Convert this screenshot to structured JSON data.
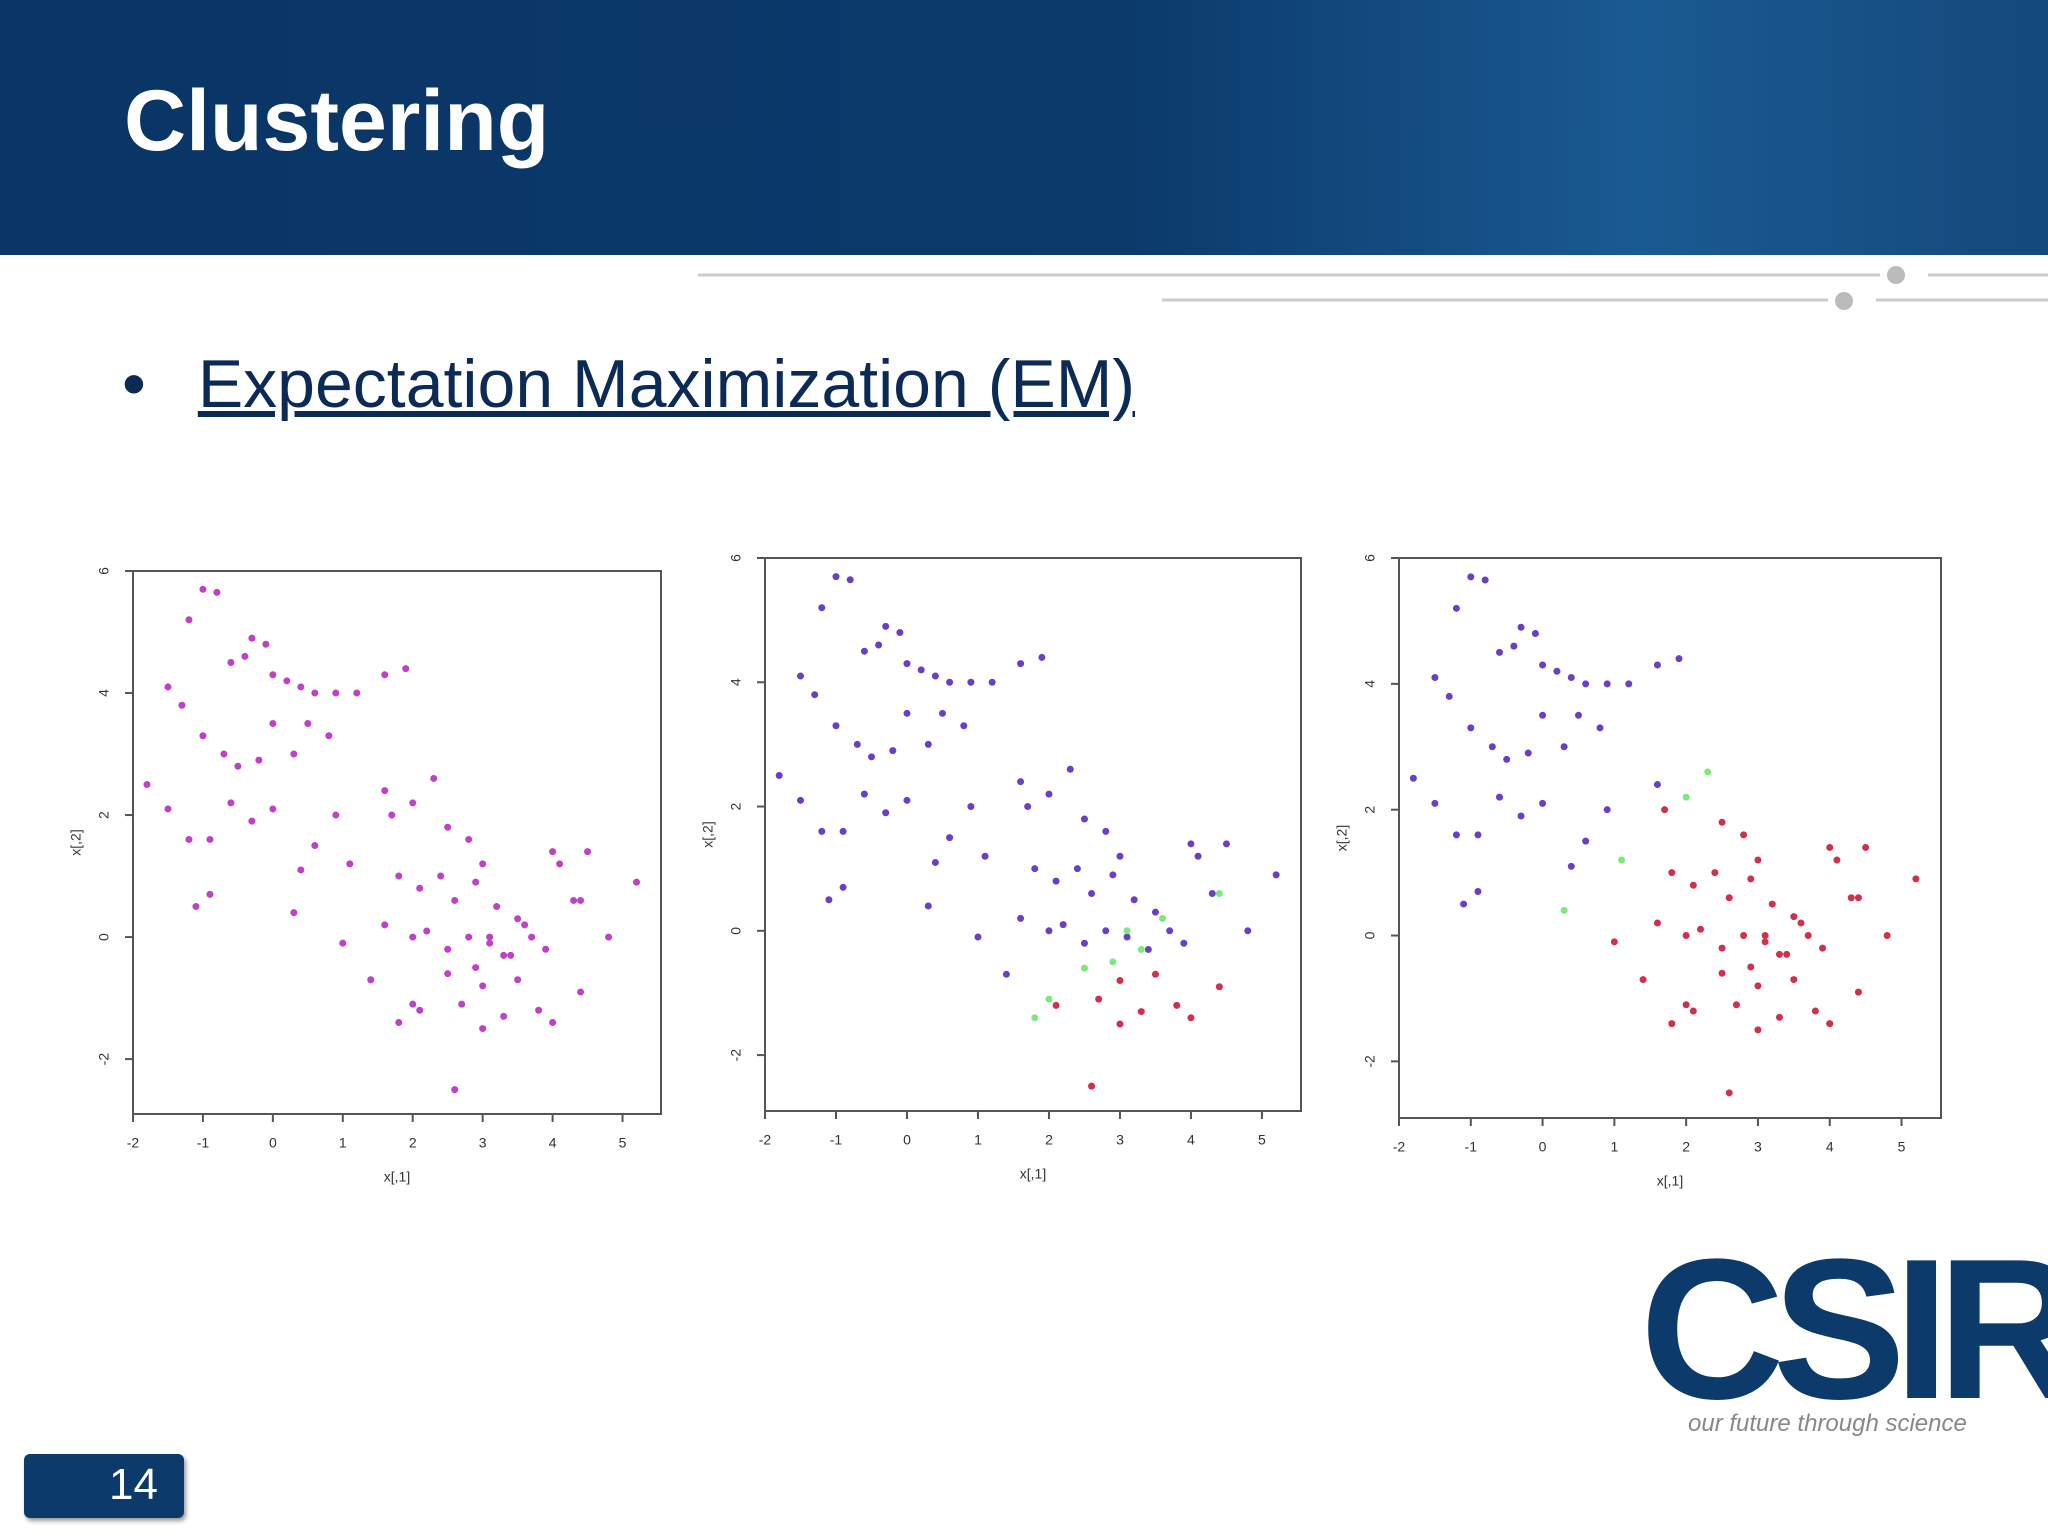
{
  "header": {
    "title": "Clustering"
  },
  "bullet": "Expectation Maximization (EM)",
  "logo": {
    "name": "CSIR",
    "tagline": "our future through science"
  },
  "page_number": "14",
  "chart_data": [
    {
      "type": "scatter",
      "xlabel": "x[,1]",
      "ylabel": "x[,2]",
      "xlim": [
        -2,
        5.55
      ],
      "ylim": [
        -2.9,
        6
      ],
      "xticks": [
        -2,
        -1,
        0,
        1,
        2,
        3,
        4,
        5
      ],
      "yticks": [
        -2,
        0,
        2,
        4,
        6
      ],
      "series": [
        {
          "color": "#c040c8",
          "x": [
            -1.5,
            -1.2,
            -1,
            -0.8,
            -0.6,
            -0.4,
            -0.3,
            -0.1,
            0,
            0.2,
            0.4,
            0.6,
            0.9,
            1.2,
            1.6,
            -1.3,
            -1,
            -0.7,
            -0.5,
            -0.2,
            0,
            0.3,
            0.5,
            0.8,
            -1.8,
            -1.5,
            -1.2,
            -0.9,
            -0.6,
            -0.3,
            0,
            0.4,
            0.6,
            -1.1,
            -0.9,
            0.3,
            1.1,
            1.6,
            1.9,
            0.9
          ],
          "values": [
            4.1,
            5.2,
            5.7,
            5.65,
            4.5,
            4.6,
            4.9,
            4.8,
            4.3,
            4.2,
            4.1,
            4,
            4,
            4,
            4.3,
            3.8,
            3.3,
            3,
            2.8,
            2.9,
            3.5,
            3,
            3.5,
            3.3,
            2.5,
            2.1,
            1.6,
            1.6,
            2.2,
            1.9,
            2.1,
            1.1,
            1.5,
            0.5,
            0.7,
            0.4,
            1.2,
            2.4,
            4.4,
            2
          ]
        },
        {
          "color": "#c040c8",
          "x": [
            1.7,
            2.0,
            2.3,
            2.5,
            2.8,
            3.0,
            1.8,
            2.1,
            2.4,
            2.6,
            2.9,
            3.2,
            3.5,
            1.6,
            2.0,
            2.2,
            2.5,
            2.8,
            3.1,
            3.4,
            3.7,
            4.0,
            4.1,
            4.3,
            4.5,
            5.2,
            4.8,
            1.0,
            3.9,
            1.4
          ],
          "values": [
            2.0,
            2.2,
            2.6,
            1.8,
            1.6,
            1.2,
            1.0,
            0.8,
            1.0,
            0.6,
            0.9,
            0.5,
            0.3,
            0.2,
            0,
            0.1,
            -0.2,
            0,
            -0.1,
            -0.3,
            0,
            1.4,
            1.2,
            0.6,
            1.4,
            0.9,
            0,
            -0.1,
            -0.2,
            -0.7
          ]
        },
        {
          "color": "#c040c8",
          "x": [
            2.7,
            3.0,
            3.5,
            3.8,
            4.0,
            4.4,
            2.6,
            3.0,
            3.3,
            2.1
          ],
          "values": [
            -1.1,
            -0.8,
            -0.7,
            -1.2,
            -1.4,
            -0.9,
            -2.5,
            -1.5,
            -1.3,
            -1.2
          ]
        },
        {
          "color": "#c040c8",
          "x": [
            1.8,
            2.0,
            2.5,
            2.9,
            3.3,
            3.6,
            4.4,
            3.1
          ],
          "values": [
            -1.4,
            -1.1,
            -0.6,
            -0.5,
            -0.3,
            0.2,
            0.6,
            0
          ]
        }
      ]
    },
    {
      "type": "scatter",
      "xlabel": "x[,1]",
      "ylabel": "x[,2]",
      "xlim": [
        -2,
        5.55
      ],
      "ylim": [
        -2.9,
        6
      ],
      "xticks": [
        -2,
        -1,
        0,
        1,
        2,
        3,
        4,
        5
      ],
      "yticks": [
        -2,
        0,
        2,
        4,
        6
      ],
      "series": [
        {
          "color": "#6a3fc8",
          "x": [
            -1.5,
            -1.2,
            -1,
            -0.8,
            -0.6,
            -0.4,
            -0.3,
            -0.1,
            0,
            0.2,
            0.4,
            0.6,
            0.9,
            1.2,
            1.6,
            -1.3,
            -1,
            -0.7,
            -0.5,
            -0.2,
            0,
            0.3,
            0.5,
            0.8,
            -1.8,
            -1.5,
            -1.2,
            -0.9,
            -0.6,
            -0.3,
            0,
            0.4,
            0.6,
            -1.1,
            -0.9,
            0.3,
            1.1,
            1.6,
            1.9,
            0.9
          ],
          "values": [
            4.1,
            5.2,
            5.7,
            5.65,
            4.5,
            4.6,
            4.9,
            4.8,
            4.3,
            4.2,
            4.1,
            4,
            4,
            4,
            4.3,
            3.8,
            3.3,
            3,
            2.8,
            2.9,
            3.5,
            3,
            3.5,
            3.3,
            2.5,
            2.1,
            1.6,
            1.6,
            2.2,
            1.9,
            2.1,
            1.1,
            1.5,
            0.5,
            0.7,
            0.4,
            1.2,
            2.4,
            4.4,
            2
          ]
        },
        {
          "color": "#6a3fc8",
          "x": [
            1.7,
            2.0,
            2.3,
            2.5,
            2.8,
            3.0,
            1.8,
            2.1,
            2.4,
            2.6,
            2.9,
            3.2,
            3.5,
            1.6,
            2.0,
            2.2,
            2.5,
            2.8,
            3.1,
            3.4,
            3.7,
            4.0,
            4.1,
            4.3,
            4.5,
            5.2,
            4.8,
            1.0,
            3.9,
            1.4
          ],
          "values": [
            2.0,
            2.2,
            2.6,
            1.8,
            1.6,
            1.2,
            1.0,
            0.8,
            1.0,
            0.6,
            0.9,
            0.5,
            0.3,
            0.2,
            0,
            0.1,
            -0.2,
            0,
            -0.1,
            -0.3,
            0,
            1.4,
            1.2,
            0.6,
            1.4,
            0.9,
            0,
            -0.1,
            -0.2,
            -0.7
          ]
        },
        {
          "color": "#d0304a",
          "x": [
            2.7,
            3.0,
            3.5,
            3.8,
            4.0,
            4.4,
            2.6,
            3.0,
            3.3,
            2.1
          ],
          "values": [
            -1.1,
            -0.8,
            -0.7,
            -1.2,
            -1.4,
            -0.9,
            -2.5,
            -1.5,
            -1.3,
            -1.2
          ]
        },
        {
          "color": "#7ee87e",
          "x": [
            1.8,
            2.0,
            2.5,
            2.9,
            3.3,
            3.6,
            4.4,
            3.1
          ],
          "values": [
            -1.4,
            -1.1,
            -0.6,
            -0.5,
            -0.3,
            0.2,
            0.6,
            0
          ]
        }
      ]
    },
    {
      "type": "scatter",
      "xlabel": "x[,1]",
      "ylabel": "x[,2]",
      "xlim": [
        -2,
        5.55
      ],
      "ylim": [
        -2.9,
        6
      ],
      "xticks": [
        -2,
        -1,
        0,
        1,
        2,
        3,
        4,
        5
      ],
      "yticks": [
        -2,
        0,
        2,
        4,
        6
      ],
      "series": [
        {
          "color": "#6a3fc8",
          "x": [
            -1.5,
            -1.2,
            -1,
            -0.8,
            -0.6,
            -0.4,
            -0.3,
            -0.1,
            0,
            0.2,
            0.4,
            0.6,
            0.9,
            1.2,
            1.6,
            -1.3,
            -1,
            -0.7,
            -0.5,
            -0.2,
            0,
            0.3,
            0.5,
            0.8,
            -1.8,
            -1.5,
            -1.2,
            -0.9,
            -0.6,
            -0.3,
            0,
            0.4,
            0.6,
            -1.1,
            -0.9,
            1.6,
            1.9,
            0.9
          ],
          "values": [
            4.1,
            5.2,
            5.7,
            5.65,
            4.5,
            4.6,
            4.9,
            4.8,
            4.3,
            4.2,
            4.1,
            4,
            4,
            4,
            4.3,
            3.8,
            3.3,
            3,
            2.8,
            2.9,
            3.5,
            3,
            3.5,
            3.3,
            2.5,
            2.1,
            1.6,
            1.6,
            2.2,
            1.9,
            2.1,
            1.1,
            1.5,
            0.5,
            0.7,
            2.4,
            4.4,
            2
          ]
        },
        {
          "color": "#d0304a",
          "x": [
            1.7,
            2.5,
            2.8,
            3.0,
            1.8,
            2.1,
            2.4,
            2.6,
            2.9,
            3.2,
            3.5,
            1.6,
            2.0,
            2.2,
            2.5,
            2.8,
            3.1,
            3.4,
            3.7,
            4.0,
            4.1,
            4.3,
            4.5,
            5.2,
            4.8,
            1.0,
            3.9,
            1.4,
            2.7,
            3.0,
            3.5,
            3.8,
            4.0,
            4.4,
            2.6,
            3.0,
            3.3,
            2.1,
            1.8,
            2.0,
            2.5,
            2.9,
            3.3,
            3.6,
            4.4,
            3.1
          ],
          "values": [
            2.0,
            1.8,
            1.6,
            1.2,
            1.0,
            0.8,
            1.0,
            0.6,
            0.9,
            0.5,
            0.3,
            0.2,
            0,
            0.1,
            -0.2,
            0,
            -0.1,
            -0.3,
            0,
            1.4,
            1.2,
            0.6,
            1.4,
            0.9,
            0,
            -0.1,
            -0.2,
            -0.7,
            -1.1,
            -0.8,
            -0.7,
            -1.2,
            -1.4,
            -0.9,
            -2.5,
            -1.5,
            -1.3,
            -1.2,
            -1.4,
            -1.1,
            -0.6,
            -0.5,
            -0.3,
            0.2,
            0.6,
            0
          ]
        },
        {
          "color": "#7ee87e",
          "x": [
            2.3,
            2.0,
            0.3,
            1.1
          ],
          "values": [
            2.6,
            2.2,
            0.4,
            1.2
          ]
        }
      ]
    }
  ]
}
